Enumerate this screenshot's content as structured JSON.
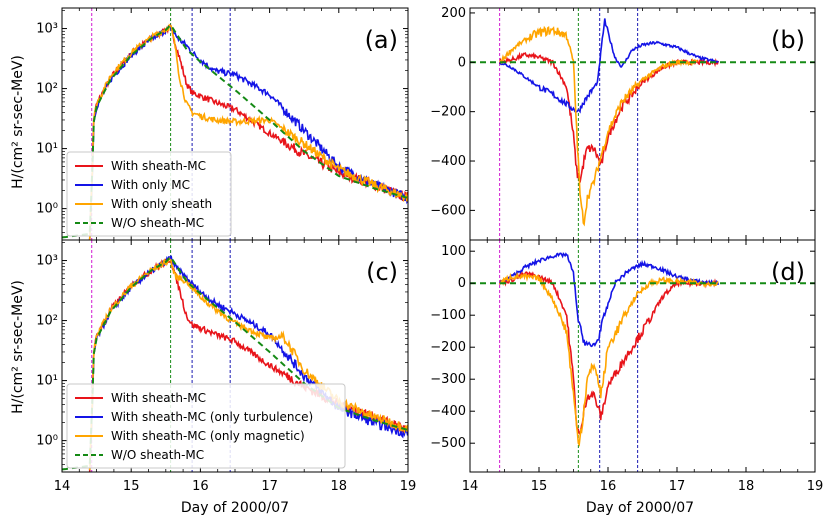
{
  "figure": {
    "x_axis_label": "Day of 2000/07",
    "y_axis_label_left": "H/(cm² sr-sec-MeV)",
    "vertical_markers": [
      {
        "x": 14.43,
        "color": "#cc00cc"
      },
      {
        "x": 15.57,
        "color": "#008000"
      },
      {
        "x": 15.88,
        "color": "#0000aa"
      },
      {
        "x": 16.43,
        "color": "#0000aa"
      }
    ],
    "colors": {
      "red": "#e8141a",
      "blue": "#1414e6",
      "orange": "#ffa500",
      "green": "#158a15"
    }
  },
  "chart_data": [
    {
      "id": "a",
      "type": "line",
      "label": "(a)",
      "yscale": "log",
      "xlim": [
        14,
        19
      ],
      "ylim": [
        0.3,
        2200
      ],
      "xticks": [
        "14",
        "15",
        "16",
        "17",
        "18",
        "19"
      ],
      "yticks": [
        {
          "v": 1,
          "label": "10⁰"
        },
        {
          "v": 10,
          "label": "10¹"
        },
        {
          "v": 100,
          "label": "10²"
        },
        {
          "v": 1000,
          "label": "10³"
        }
      ],
      "legend": [
        "With sheath-MC",
        "With only MC",
        "With only sheath",
        "W/O sheath-MC"
      ],
      "series": [
        {
          "name": "With sheath-MC",
          "color": "red",
          "noise": 0.1,
          "x": [
            14.4,
            14.44,
            14.46,
            14.5,
            14.7,
            15.0,
            15.3,
            15.5,
            15.57,
            15.63,
            15.7,
            15.8,
            15.88,
            16.0,
            16.2,
            16.5,
            17.0,
            17.5,
            18.0,
            18.5,
            19.0
          ],
          "y": [
            0.3,
            5,
            30,
            55,
            150,
            380,
            700,
            950,
            1050,
            600,
            320,
            120,
            85,
            75,
            60,
            45,
            18,
            8,
            4,
            2.5,
            1.5
          ]
        },
        {
          "name": "With only MC",
          "color": "blue",
          "noise": 0.1,
          "x": [
            14.4,
            14.44,
            14.46,
            14.5,
            14.7,
            15.0,
            15.3,
            15.5,
            15.57,
            15.63,
            15.7,
            15.8,
            15.88,
            16.0,
            16.2,
            16.5,
            17.0,
            17.5,
            18.0,
            18.5,
            19.0
          ],
          "y": [
            0.3,
            4,
            28,
            50,
            140,
            360,
            680,
            930,
            1050,
            800,
            650,
            520,
            400,
            300,
            200,
            170,
            80,
            20,
            5,
            2.5,
            1.5
          ]
        },
        {
          "name": "With only sheath",
          "color": "orange",
          "noise": 0.1,
          "x": [
            14.4,
            14.44,
            14.46,
            14.5,
            14.7,
            15.0,
            15.3,
            15.5,
            15.57,
            15.63,
            15.7,
            15.8,
            15.88,
            16.0,
            16.2,
            16.5,
            17.0,
            17.5,
            18.0,
            18.5,
            19.0
          ],
          "y": [
            0.3,
            5,
            32,
            55,
            160,
            400,
            720,
            980,
            1100,
            550,
            150,
            55,
            40,
            35,
            30,
            28,
            30,
            12,
            4.5,
            2.5,
            1.5
          ]
        },
        {
          "name": "W/O sheath-MC",
          "color": "green",
          "dashed": true,
          "noise": 0,
          "x": [
            14.0,
            14.4,
            14.44,
            14.46,
            14.5,
            14.7,
            15.0,
            15.3,
            15.5,
            15.57,
            15.8,
            16.0,
            16.5,
            17.0,
            17.5,
            18.0,
            18.5,
            19.0
          ],
          "y": [
            0.33,
            0.38,
            5,
            28,
            50,
            140,
            360,
            700,
            950,
            1150,
            450,
            280,
            95,
            30,
            9,
            3.5,
            2.2,
            1.5
          ]
        }
      ]
    },
    {
      "id": "b",
      "type": "line",
      "label": "(b)",
      "yscale": "linear",
      "xlim": [
        14,
        19
      ],
      "ylim": [
        -720,
        220
      ],
      "xticks": [
        "14",
        "15",
        "16",
        "17",
        "18",
        "19"
      ],
      "yticks": [
        {
          "v": 200,
          "label": "200"
        },
        {
          "v": 0,
          "label": "0"
        },
        {
          "v": -200,
          "label": "−200"
        },
        {
          "v": -400,
          "label": "−400"
        },
        {
          "v": -600,
          "label": "−600"
        }
      ],
      "series": [
        {
          "name": "With sheath-MC",
          "color": "red",
          "noise": 18,
          "x": [
            14.43,
            14.6,
            14.8,
            15.0,
            15.2,
            15.4,
            15.5,
            15.55,
            15.6,
            15.65,
            15.7,
            15.8,
            15.9,
            16.0,
            16.2,
            16.5,
            16.8,
            17.0,
            17.3,
            17.6
          ],
          "y": [
            0,
            10,
            30,
            20,
            0,
            -100,
            -300,
            -450,
            -480,
            -400,
            -350,
            -350,
            -420,
            -300,
            -180,
            -80,
            -20,
            0,
            0,
            0
          ]
        },
        {
          "name": "With only MC",
          "color": "blue",
          "noise": 12,
          "x": [
            14.43,
            14.6,
            14.8,
            15.0,
            15.2,
            15.4,
            15.5,
            15.57,
            15.65,
            15.75,
            15.85,
            15.9,
            15.95,
            16.0,
            16.1,
            16.2,
            16.35,
            16.5,
            16.7,
            17.0,
            17.3,
            17.6
          ],
          "y": [
            0,
            -20,
            -60,
            -100,
            -130,
            -170,
            -190,
            -200,
            -160,
            -120,
            -80,
            50,
            170,
            120,
            20,
            -20,
            50,
            70,
            80,
            60,
            20,
            0
          ]
        },
        {
          "name": "With only sheath",
          "color": "orange",
          "noise": 18,
          "x": [
            14.43,
            14.6,
            14.8,
            15.0,
            15.2,
            15.4,
            15.5,
            15.55,
            15.6,
            15.65,
            15.7,
            15.8,
            15.9,
            16.0,
            16.2,
            16.5,
            16.8,
            17.0,
            17.3
          ],
          "y": [
            0,
            50,
            90,
            120,
            130,
            110,
            0,
            -300,
            -560,
            -650,
            -550,
            -480,
            -380,
            -280,
            -160,
            -70,
            -15,
            0,
            0
          ]
        },
        {
          "name": "W/O sheath-MC",
          "color": "green",
          "dashed": true,
          "noise": 0,
          "x": [
            14.0,
            19.0
          ],
          "y": [
            0,
            0
          ]
        }
      ]
    },
    {
      "id": "c",
      "type": "line",
      "label": "(c)",
      "yscale": "log",
      "xlim": [
        14,
        19
      ],
      "ylim": [
        0.3,
        2200
      ],
      "xticks": [
        "14",
        "15",
        "16",
        "17",
        "18",
        "19"
      ],
      "yticks": [
        {
          "v": 1,
          "label": "10⁰"
        },
        {
          "v": 10,
          "label": "10¹"
        },
        {
          "v": 100,
          "label": "10²"
        },
        {
          "v": 1000,
          "label": "10³"
        }
      ],
      "legend": [
        "With sheath-MC",
        "With sheath-MC (only turbulence)",
        "With sheath-MC (only magnetic)",
        "W/O sheath-MC"
      ],
      "series": [
        {
          "name": "With sheath-MC",
          "color": "red",
          "noise": 0.1,
          "x": [
            14.4,
            14.44,
            14.46,
            14.5,
            14.7,
            15.0,
            15.3,
            15.5,
            15.57,
            15.63,
            15.7,
            15.8,
            15.88,
            16.0,
            16.2,
            16.5,
            17.0,
            17.5,
            18.0,
            18.5,
            19.0
          ],
          "y": [
            0.3,
            5,
            30,
            55,
            150,
            380,
            700,
            950,
            1050,
            600,
            320,
            120,
            85,
            75,
            60,
            45,
            18,
            8,
            4,
            2.5,
            1.5
          ]
        },
        {
          "name": "With sheath-MC (only turbulence)",
          "color": "blue",
          "noise": 0.1,
          "x": [
            14.4,
            14.44,
            14.46,
            14.5,
            14.7,
            15.0,
            15.3,
            15.5,
            15.57,
            15.63,
            15.8,
            16.0,
            16.2,
            16.5,
            17.0,
            17.5,
            18.0,
            18.5,
            19.0
          ],
          "y": [
            0.3,
            4,
            28,
            50,
            140,
            360,
            680,
            950,
            1150,
            800,
            500,
            300,
            200,
            130,
            60,
            12,
            3.5,
            2,
            1.3
          ]
        },
        {
          "name": "With sheath-MC (only magnetic)",
          "color": "orange",
          "noise": 0.1,
          "x": [
            14.4,
            14.44,
            14.46,
            14.5,
            14.7,
            15.0,
            15.3,
            15.5,
            15.57,
            15.63,
            15.8,
            16.0,
            16.2,
            16.5,
            17.0,
            17.2,
            17.5,
            18.0,
            18.5,
            19.0
          ],
          "y": [
            0.3,
            5,
            30,
            55,
            150,
            380,
            700,
            950,
            1050,
            550,
            450,
            250,
            160,
            90,
            50,
            55,
            15,
            4.5,
            2.5,
            1.6
          ]
        },
        {
          "name": "W/O sheath-MC",
          "color": "green",
          "dashed": true,
          "noise": 0,
          "x": [
            14.0,
            14.4,
            14.44,
            14.46,
            14.5,
            14.7,
            15.0,
            15.3,
            15.5,
            15.57,
            15.8,
            16.0,
            16.5,
            17.0,
            17.5,
            18.0,
            18.5,
            19.0
          ],
          "y": [
            0.33,
            0.38,
            5,
            28,
            50,
            140,
            360,
            700,
            950,
            1150,
            450,
            280,
            95,
            30,
            9,
            3.5,
            2.2,
            1.5
          ]
        }
      ]
    },
    {
      "id": "d",
      "type": "line",
      "label": "(d)",
      "yscale": "linear",
      "xlim": [
        14,
        19
      ],
      "ylim": [
        -590,
        135
      ],
      "xticks": [
        "14",
        "15",
        "16",
        "17",
        "18",
        "19"
      ],
      "yticks": [
        {
          "v": 100,
          "label": "100"
        },
        {
          "v": 0,
          "label": "0"
        },
        {
          "v": -100,
          "label": "−100"
        },
        {
          "v": -200,
          "label": "−200"
        },
        {
          "v": -300,
          "label": "−300"
        },
        {
          "v": -400,
          "label": "−400"
        },
        {
          "v": -500,
          "label": "−500"
        }
      ],
      "series": [
        {
          "name": "With sheath-MC",
          "color": "red",
          "noise": 14,
          "x": [
            14.43,
            14.6,
            14.8,
            15.0,
            15.2,
            15.4,
            15.5,
            15.55,
            15.6,
            15.65,
            15.7,
            15.8,
            15.9,
            16.0,
            16.2,
            16.5,
            16.8,
            17.0,
            17.3,
            17.6
          ],
          "y": [
            0,
            10,
            30,
            20,
            0,
            -100,
            -300,
            -450,
            -480,
            -400,
            -350,
            -350,
            -420,
            -320,
            -250,
            -150,
            -40,
            0,
            0,
            0
          ]
        },
        {
          "name": "With sheath-MC (only turbulence)",
          "color": "blue",
          "noise": 12,
          "x": [
            14.43,
            14.6,
            14.8,
            15.0,
            15.2,
            15.4,
            15.5,
            15.57,
            15.65,
            15.75,
            15.85,
            15.95,
            16.1,
            16.3,
            16.5,
            16.7,
            17.0,
            17.3,
            17.6
          ],
          "y": [
            0,
            20,
            50,
            70,
            85,
            90,
            30,
            -120,
            -180,
            -200,
            -180,
            -100,
            0,
            40,
            60,
            50,
            20,
            5,
            0
          ]
        },
        {
          "name": "With sheath-MC (only magnetic)",
          "color": "orange",
          "noise": 16,
          "x": [
            14.43,
            14.6,
            14.8,
            15.0,
            15.2,
            15.4,
            15.5,
            15.57,
            15.62,
            15.7,
            15.8,
            15.9,
            16.0,
            16.2,
            16.4,
            16.6,
            16.8,
            17.0,
            17.3,
            17.6
          ],
          "y": [
            0,
            20,
            20,
            15,
            -50,
            -150,
            -350,
            -500,
            -450,
            -300,
            -250,
            -350,
            -200,
            -120,
            -40,
            0,
            10,
            5,
            0,
            0
          ]
        },
        {
          "name": "W/O sheath-MC",
          "color": "green",
          "dashed": true,
          "noise": 0,
          "x": [
            14.0,
            19.0
          ],
          "y": [
            0,
            0
          ]
        }
      ]
    }
  ]
}
